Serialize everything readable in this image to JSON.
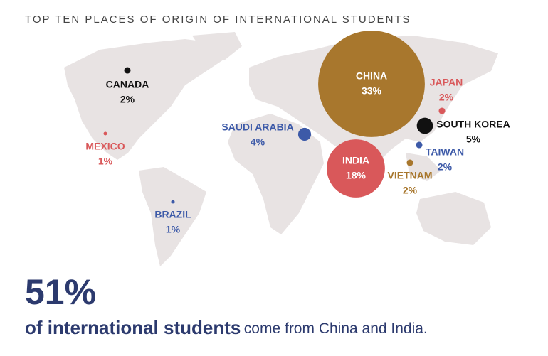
{
  "chart_data": {
    "type": "bubble-map",
    "title": "TOP TEN PLACES OF ORIGIN OF INTERNATIONAL STUDENTS",
    "series": [
      {
        "name": "CANADA",
        "values": [
          2
        ],
        "value_labels": [
          "2%"
        ],
        "color": "#111111"
      },
      {
        "name": "MEXICO",
        "values": [
          1
        ],
        "value_labels": [
          "1%"
        ],
        "color": "#d9585a"
      },
      {
        "name": "BRAZIL",
        "values": [
          1
        ],
        "value_labels": [
          "1%"
        ],
        "color": "#3d5aa8"
      },
      {
        "name": "SAUDI ARABIA",
        "values": [
          4
        ],
        "value_labels": [
          "4%"
        ],
        "color": "#3d5aa8"
      },
      {
        "name": "CHINA",
        "values": [
          33
        ],
        "value_labels": [
          "33%"
        ],
        "color": "#a8772d"
      },
      {
        "name": "INDIA",
        "values": [
          18
        ],
        "value_labels": [
          "18%"
        ],
        "color": "#d9585a"
      },
      {
        "name": "JAPAN",
        "values": [
          2
        ],
        "value_labels": [
          "2%"
        ],
        "color": "#d9585a"
      },
      {
        "name": "SOUTH KOREA",
        "values": [
          5
        ],
        "value_labels": [
          "5%"
        ],
        "color": "#111111"
      },
      {
        "name": "TAIWAN",
        "values": [
          2
        ],
        "value_labels": [
          "2%"
        ],
        "color": "#3d5aa8"
      },
      {
        "name": "VIETNAM",
        "values": [
          2
        ],
        "value_labels": [
          "2%"
        ],
        "color": "#a8772d"
      }
    ]
  },
  "callout": {
    "headline": "51%",
    "bold": "of international students",
    "rest": "come from China and India."
  }
}
